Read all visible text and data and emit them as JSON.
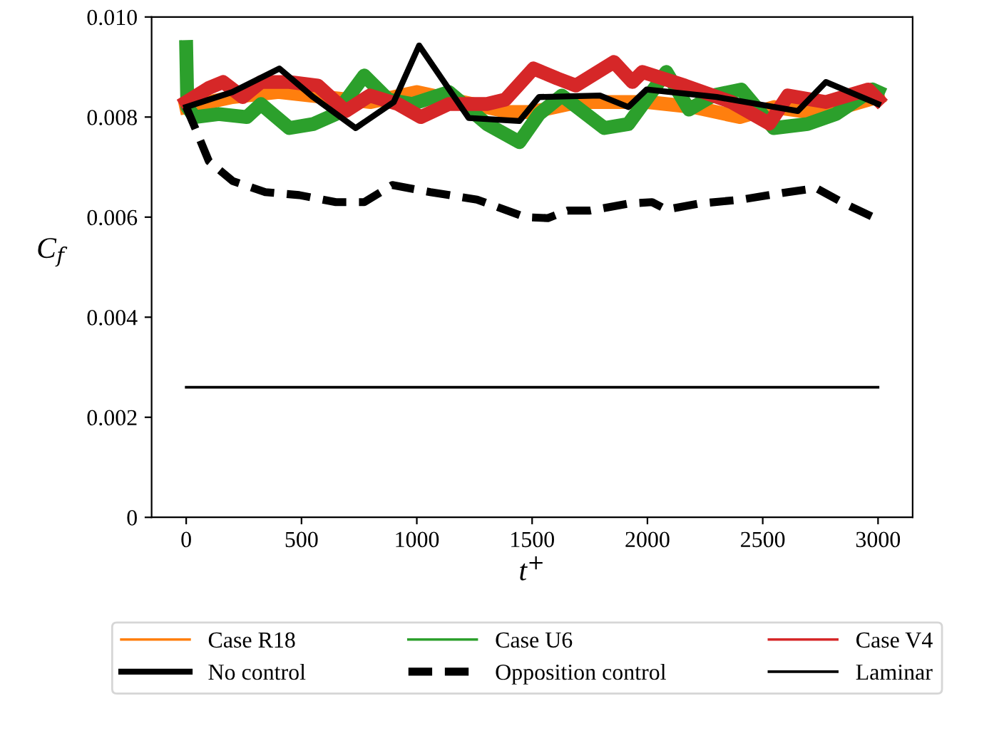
{
  "chart_data": {
    "type": "line",
    "xlabel": "t$^{+}$",
    "ylabel": "C$_{f}$",
    "xlim": [
      -150,
      3150
    ],
    "ylim": [
      0,
      0.01
    ],
    "xticks": [
      0,
      500,
      1000,
      1500,
      2000,
      2500,
      3000
    ],
    "yticks": [
      {
        "value": 0,
        "label": "0"
      },
      {
        "value": 0.002,
        "label": "0.002"
      },
      {
        "value": 0.004,
        "label": "0.004"
      },
      {
        "value": 0.006,
        "label": "0.006"
      },
      {
        "value": 0.008,
        "label": "0.008"
      },
      {
        "value": 0.01,
        "label": "0.010"
      }
    ],
    "grid": false,
    "legend": "bottom",
    "marker": "none",
    "series": [
      {
        "name": "Case R18",
        "color": "#ff7f0e",
        "line_style": "solid",
        "x": [
          0,
          200,
          400,
          600,
          800,
          1000,
          1200,
          1400,
          1500,
          1700,
          1850,
          2000,
          2200,
          2400,
          2550,
          2700,
          2850,
          3000
        ],
        "values": [
          0.0082,
          0.0084,
          0.0085,
          0.0084,
          0.0083,
          0.0085,
          0.0083,
          0.0081,
          0.0081,
          0.0083,
          0.0083,
          0.0083,
          0.0082,
          0.008,
          0.0082,
          0.0081,
          0.0082,
          0.0084
        ]
      },
      {
        "name": "Case U6",
        "color": "#2ca02c",
        "line_style": "solid",
        "x": [
          0,
          5,
          37,
          141,
          263,
          324,
          447,
          551,
          649,
          772,
          876,
          980,
          1139,
          1304,
          1445,
          1530,
          1629,
          1813,
          1917,
          2082,
          2180,
          2284,
          2407,
          2547,
          2694,
          2817,
          2976,
          3000
        ],
        "values": [
          0.0094,
          0.0082,
          0.008,
          0.00806,
          0.008,
          0.00826,
          0.00778,
          0.00786,
          0.00806,
          0.00883,
          0.00835,
          0.00826,
          0.0085,
          0.00786,
          0.0075,
          0.00806,
          0.00843,
          0.00778,
          0.00786,
          0.0089,
          0.00815,
          0.00843,
          0.00855,
          0.00778,
          0.00786,
          0.00806,
          0.00855,
          0.0085
        ]
      },
      {
        "name": "Case V4",
        "color": "#d62728",
        "line_style": "solid",
        "x": [
          0,
          98,
          160,
          245,
          324,
          447,
          570,
          692,
          796,
          918,
          1017,
          1139,
          1304,
          1384,
          1506,
          1610,
          1690,
          1855,
          1935,
          1978,
          2162,
          2364,
          2529,
          2609,
          2774,
          2958,
          3000
        ],
        "values": [
          0.0083,
          0.00858,
          0.0087,
          0.0084,
          0.0087,
          0.0087,
          0.00863,
          0.00812,
          0.00843,
          0.00826,
          0.008,
          0.00826,
          0.00826,
          0.00835,
          0.00897,
          0.00877,
          0.00863,
          0.0091,
          0.0087,
          0.0089,
          0.00863,
          0.0083,
          0.00787,
          0.00843,
          0.0083,
          0.00855,
          0.00835
        ]
      },
      {
        "name": "No control",
        "color": "#000000",
        "line_style": "solid",
        "x": [
          0,
          200,
          404,
          550,
          735,
          900,
          1010,
          1225,
          1445,
          1530,
          1794,
          1917,
          1996,
          2300,
          2652,
          2774,
          3000
        ],
        "values": [
          0.0082,
          0.0085,
          0.00897,
          0.0084,
          0.00778,
          0.0083,
          0.00943,
          0.00798,
          0.00792,
          0.0084,
          0.00843,
          0.0082,
          0.00855,
          0.0084,
          0.00812,
          0.0087,
          0.00826
        ]
      },
      {
        "name": "Opposition control",
        "color": "#000000",
        "line_style": "dashed",
        "x": [
          0,
          37,
          98,
          202,
          343,
          490,
          649,
          772,
          894,
          1059,
          1261,
          1470,
          1568,
          1653,
          1751,
          1917,
          2020,
          2082,
          2223,
          2407,
          2609,
          2731,
          2854,
          2988
        ],
        "values": [
          0.0082,
          0.0078,
          0.00712,
          0.00672,
          0.0065,
          0.00644,
          0.0063,
          0.0063,
          0.00664,
          0.0065,
          0.00635,
          0.006,
          0.00598,
          0.00613,
          0.00613,
          0.00627,
          0.0063,
          0.00615,
          0.00627,
          0.00635,
          0.0065,
          0.00658,
          0.00627,
          0.00598
        ]
      },
      {
        "name": "Laminar",
        "color": "#000000",
        "line_style": "solid",
        "x": [
          0,
          3000
        ],
        "values": [
          0.0026,
          0.0026
        ]
      }
    ]
  }
}
